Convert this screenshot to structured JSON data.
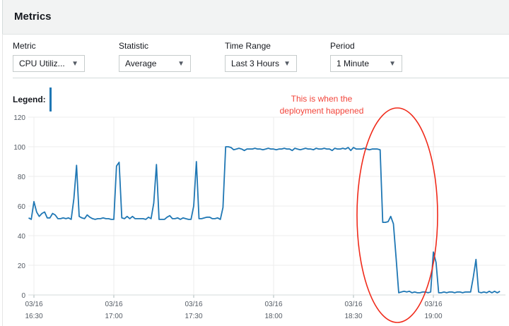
{
  "header": {
    "title": "Metrics"
  },
  "controls": [
    {
      "label": "Metric",
      "value": "CPU Utiliz..."
    },
    {
      "label": "Statistic",
      "value": "Average"
    },
    {
      "label": "Time Range",
      "value": "Last 3 Hours"
    },
    {
      "label": "Period",
      "value": "1 Minute"
    }
  ],
  "legend": {
    "label": "Legend:",
    "color": "#1f77b4"
  },
  "annotation": {
    "line1": "This is when the",
    "line2": "deployment happened",
    "color": "#f2443a"
  },
  "chart_data": {
    "type": "line",
    "ylim": [
      0,
      120
    ],
    "yticks": [
      "0",
      "20",
      "40",
      "60",
      "80",
      "100",
      "120"
    ],
    "xticks": [
      {
        "date": "03/16",
        "time": "16:30"
      },
      {
        "date": "03/16",
        "time": "17:00"
      },
      {
        "date": "03/16",
        "time": "17:30"
      },
      {
        "date": "03/16",
        "time": "18:00"
      },
      {
        "date": "03/16",
        "time": "18:30"
      },
      {
        "date": "03/16",
        "time": "19:00"
      }
    ],
    "grid": true,
    "series_color": "#1f77b4",
    "x_start": "16:28",
    "x_interval_minutes": 1,
    "values": [
      52,
      51,
      63,
      56,
      53,
      55,
      56,
      52,
      52,
      55,
      54,
      51.5,
      51.5,
      52,
      51.5,
      52,
      51,
      65,
      87.5,
      53,
      52,
      51.5,
      54,
      52.5,
      51.5,
      51,
      51.5,
      51.5,
      52,
      51.5,
      51.5,
      51,
      51,
      87,
      89.5,
      52,
      51.5,
      53,
      51.5,
      53,
      51.5,
      51.5,
      51.5,
      51.5,
      51,
      52.5,
      51.5,
      62,
      88,
      51,
      51,
      51,
      52.5,
      53.5,
      51.5,
      51.5,
      52,
      51,
      52,
      51.5,
      51,
      51,
      60,
      90,
      51.5,
      51.5,
      52,
      52.5,
      52.5,
      51.5,
      51.5,
      52,
      51,
      59,
      100,
      100,
      99.5,
      98,
      98.5,
      99,
      98.5,
      97.5,
      98.5,
      98.5,
      98.5,
      99,
      98.5,
      98.5,
      98,
      98.5,
      99,
      98.5,
      98.5,
      98,
      98.5,
      98.5,
      99,
      98.5,
      98.5,
      97.5,
      99,
      98.5,
      98,
      98.5,
      99,
      98.5,
      98.5,
      98,
      99,
      98.5,
      98.5,
      99,
      98.5,
      98.5,
      97.5,
      99,
      98.5,
      98.5,
      99,
      98.5,
      99.5,
      97.5,
      99.5,
      98.5,
      98.5,
      98.5,
      99,
      98.5,
      98,
      98.5,
      98.5,
      98.5,
      98,
      49,
      49,
      49.5,
      53,
      48,
      25,
      1.5,
      2,
      2.5,
      2,
      2.5,
      1.5,
      2,
      1.5,
      1.5,
      2,
      2,
      1.5,
      2,
      29,
      22,
      1.5,
      1.5,
      2,
      1.5,
      2,
      2,
      1.5,
      2,
      2,
      1.5,
      2,
      2,
      2,
      12,
      24,
      2,
      1.5,
      2,
      1.5,
      2.5,
      1.5,
      2.5,
      1.5,
      2.5
    ]
  }
}
